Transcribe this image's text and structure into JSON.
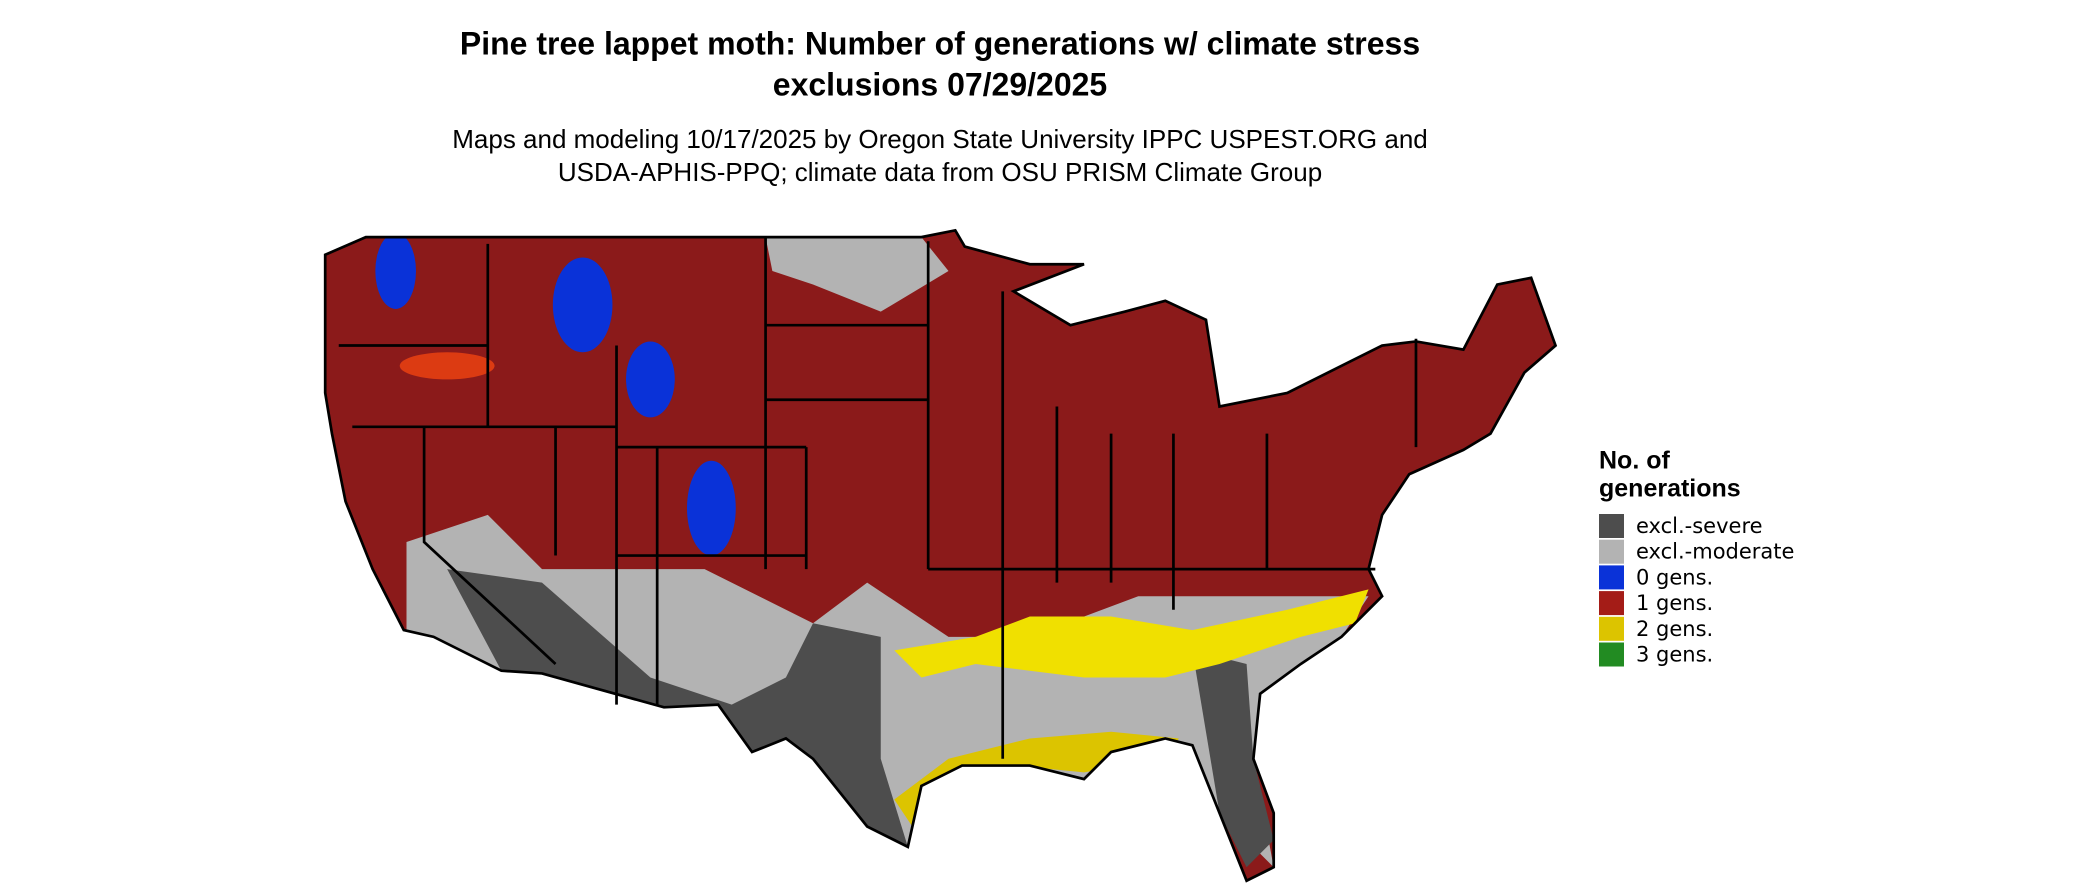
{
  "title": [
    "Pine tree lappet moth: Number of generations w/ climate stress",
    "exclusions 07/29/2025"
  ],
  "subtitle": [
    "Maps and modeling 10/17/2025 by Oregon State University IPPC USPEST.ORG and",
    "USDA-APHIS-PPQ; climate data from OSU PRISM Climate Group"
  ],
  "legend": {
    "title": [
      "No. of",
      "generations"
    ],
    "items": [
      {
        "label": "excl.-severe",
        "color": "#4d4d4d"
      },
      {
        "label": "excl.-moderate",
        "color": "#b3b3b3"
      },
      {
        "label": "0 gens.",
        "color": "#0a32d8"
      },
      {
        "label": "1 gens.",
        "color": "#a41c17"
      },
      {
        "label": "2 gens.",
        "color": "#dcc400"
      },
      {
        "label": "3 gens.",
        "color": "#228b22"
      }
    ]
  }
}
